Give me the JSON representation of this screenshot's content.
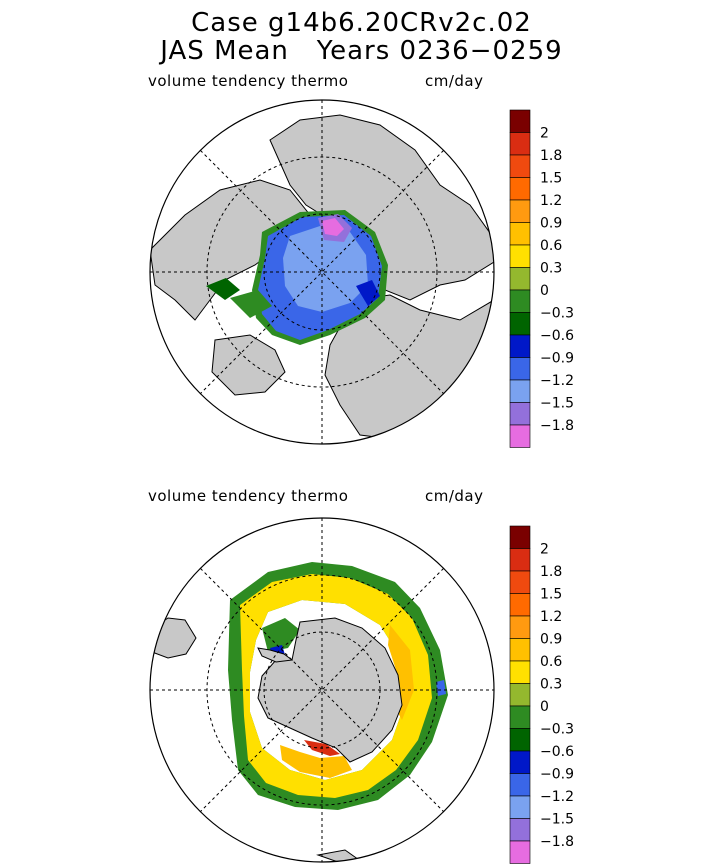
{
  "title_line1": "Case g14b6.20CRv2c.02",
  "title_line2": "JAS Mean   Years 0236−0259",
  "chart_data": [
    {
      "type": "heatmap",
      "projection": "north-polar-stereographic",
      "variable": "volume tendency thermo",
      "units": "cm/day",
      "colorbar": {
        "levels": [
          "2",
          "1.8",
          "1.5",
          "1.2",
          "0.9",
          "0.6",
          "0.3",
          "0",
          "−0.3",
          "−0.6",
          "−0.9",
          "−1.2",
          "−1.5",
          "−1.8"
        ],
        "colors": [
          "#7a0000",
          "#d92d12",
          "#f04a0f",
          "#ff6a00",
          "#ff9a10",
          "#ffc000",
          "#ffe000",
          "#94b82e",
          "#2e8b22",
          "#006400",
          "#0018c8",
          "#3a66e8",
          "#7aa2f0",
          "#9370db",
          "#e66ce0"
        ]
      },
      "dominant_range": "-1.8 to -0.3 (mostly -1.2)"
    },
    {
      "type": "heatmap",
      "projection": "south-polar-stereographic",
      "variable": "volume tendency thermo",
      "units": "cm/day",
      "colorbar": {
        "levels": [
          "2",
          "1.8",
          "1.5",
          "1.2",
          "0.9",
          "0.6",
          "0.3",
          "0",
          "−0.3",
          "−0.6",
          "−0.9",
          "−1.2",
          "−1.5",
          "−1.8"
        ],
        "colors": [
          "#7a0000",
          "#d92d12",
          "#f04a0f",
          "#ff6a00",
          "#ff9a10",
          "#ffc000",
          "#ffe000",
          "#94b82e",
          "#2e8b22",
          "#006400",
          "#0018c8",
          "#3a66e8",
          "#7aa2f0",
          "#9370db",
          "#e66ce0"
        ]
      },
      "dominant_range": "0.3 to 0.9 (mostly 0.6)"
    }
  ]
}
